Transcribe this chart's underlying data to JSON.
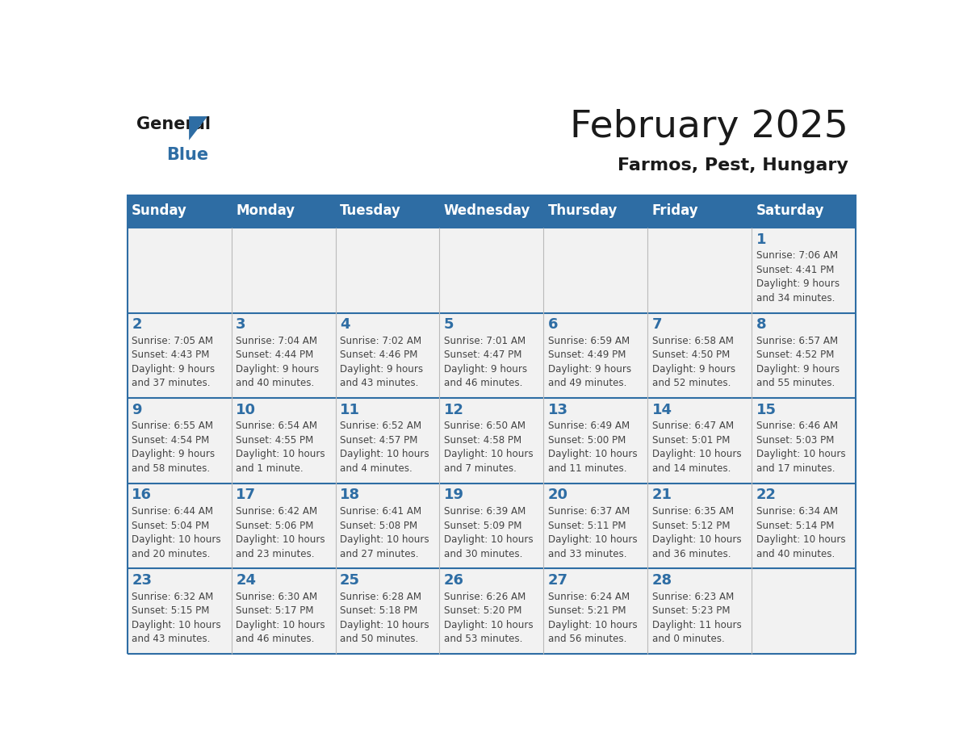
{
  "title": "February 2025",
  "subtitle": "Farmos, Pest, Hungary",
  "header_bg": "#2E6DA4",
  "header_text_color": "#FFFFFF",
  "cell_bg_light": "#F2F2F2",
  "day_number_color": "#2E6DA4",
  "info_text_color": "#444444",
  "border_color": "#2E6DA4",
  "days_of_week": [
    "Sunday",
    "Monday",
    "Tuesday",
    "Wednesday",
    "Thursday",
    "Friday",
    "Saturday"
  ],
  "weeks": [
    [
      {
        "day": null,
        "sunrise": null,
        "sunset": null,
        "daylight": null
      },
      {
        "day": null,
        "sunrise": null,
        "sunset": null,
        "daylight": null
      },
      {
        "day": null,
        "sunrise": null,
        "sunset": null,
        "daylight": null
      },
      {
        "day": null,
        "sunrise": null,
        "sunset": null,
        "daylight": null
      },
      {
        "day": null,
        "sunrise": null,
        "sunset": null,
        "daylight": null
      },
      {
        "day": null,
        "sunrise": null,
        "sunset": null,
        "daylight": null
      },
      {
        "day": 1,
        "sunrise": "7:06 AM",
        "sunset": "4:41 PM",
        "daylight": "9 hours\nand 34 minutes."
      }
    ],
    [
      {
        "day": 2,
        "sunrise": "7:05 AM",
        "sunset": "4:43 PM",
        "daylight": "9 hours\nand 37 minutes."
      },
      {
        "day": 3,
        "sunrise": "7:04 AM",
        "sunset": "4:44 PM",
        "daylight": "9 hours\nand 40 minutes."
      },
      {
        "day": 4,
        "sunrise": "7:02 AM",
        "sunset": "4:46 PM",
        "daylight": "9 hours\nand 43 minutes."
      },
      {
        "day": 5,
        "sunrise": "7:01 AM",
        "sunset": "4:47 PM",
        "daylight": "9 hours\nand 46 minutes."
      },
      {
        "day": 6,
        "sunrise": "6:59 AM",
        "sunset": "4:49 PM",
        "daylight": "9 hours\nand 49 minutes."
      },
      {
        "day": 7,
        "sunrise": "6:58 AM",
        "sunset": "4:50 PM",
        "daylight": "9 hours\nand 52 minutes."
      },
      {
        "day": 8,
        "sunrise": "6:57 AM",
        "sunset": "4:52 PM",
        "daylight": "9 hours\nand 55 minutes."
      }
    ],
    [
      {
        "day": 9,
        "sunrise": "6:55 AM",
        "sunset": "4:54 PM",
        "daylight": "9 hours\nand 58 minutes."
      },
      {
        "day": 10,
        "sunrise": "6:54 AM",
        "sunset": "4:55 PM",
        "daylight": "10 hours\nand 1 minute."
      },
      {
        "day": 11,
        "sunrise": "6:52 AM",
        "sunset": "4:57 PM",
        "daylight": "10 hours\nand 4 minutes."
      },
      {
        "day": 12,
        "sunrise": "6:50 AM",
        "sunset": "4:58 PM",
        "daylight": "10 hours\nand 7 minutes."
      },
      {
        "day": 13,
        "sunrise": "6:49 AM",
        "sunset": "5:00 PM",
        "daylight": "10 hours\nand 11 minutes."
      },
      {
        "day": 14,
        "sunrise": "6:47 AM",
        "sunset": "5:01 PM",
        "daylight": "10 hours\nand 14 minutes."
      },
      {
        "day": 15,
        "sunrise": "6:46 AM",
        "sunset": "5:03 PM",
        "daylight": "10 hours\nand 17 minutes."
      }
    ],
    [
      {
        "day": 16,
        "sunrise": "6:44 AM",
        "sunset": "5:04 PM",
        "daylight": "10 hours\nand 20 minutes."
      },
      {
        "day": 17,
        "sunrise": "6:42 AM",
        "sunset": "5:06 PM",
        "daylight": "10 hours\nand 23 minutes."
      },
      {
        "day": 18,
        "sunrise": "6:41 AM",
        "sunset": "5:08 PM",
        "daylight": "10 hours\nand 27 minutes."
      },
      {
        "day": 19,
        "sunrise": "6:39 AM",
        "sunset": "5:09 PM",
        "daylight": "10 hours\nand 30 minutes."
      },
      {
        "day": 20,
        "sunrise": "6:37 AM",
        "sunset": "5:11 PM",
        "daylight": "10 hours\nand 33 minutes."
      },
      {
        "day": 21,
        "sunrise": "6:35 AM",
        "sunset": "5:12 PM",
        "daylight": "10 hours\nand 36 minutes."
      },
      {
        "day": 22,
        "sunrise": "6:34 AM",
        "sunset": "5:14 PM",
        "daylight": "10 hours\nand 40 minutes."
      }
    ],
    [
      {
        "day": 23,
        "sunrise": "6:32 AM",
        "sunset": "5:15 PM",
        "daylight": "10 hours\nand 43 minutes."
      },
      {
        "day": 24,
        "sunrise": "6:30 AM",
        "sunset": "5:17 PM",
        "daylight": "10 hours\nand 46 minutes."
      },
      {
        "day": 25,
        "sunrise": "6:28 AM",
        "sunset": "5:18 PM",
        "daylight": "10 hours\nand 50 minutes."
      },
      {
        "day": 26,
        "sunrise": "6:26 AM",
        "sunset": "5:20 PM",
        "daylight": "10 hours\nand 53 minutes."
      },
      {
        "day": 27,
        "sunrise": "6:24 AM",
        "sunset": "5:21 PM",
        "daylight": "10 hours\nand 56 minutes."
      },
      {
        "day": 28,
        "sunrise": "6:23 AM",
        "sunset": "5:23 PM",
        "daylight": "11 hours\nand 0 minutes."
      },
      {
        "day": null,
        "sunrise": null,
        "sunset": null,
        "daylight": null
      }
    ]
  ]
}
